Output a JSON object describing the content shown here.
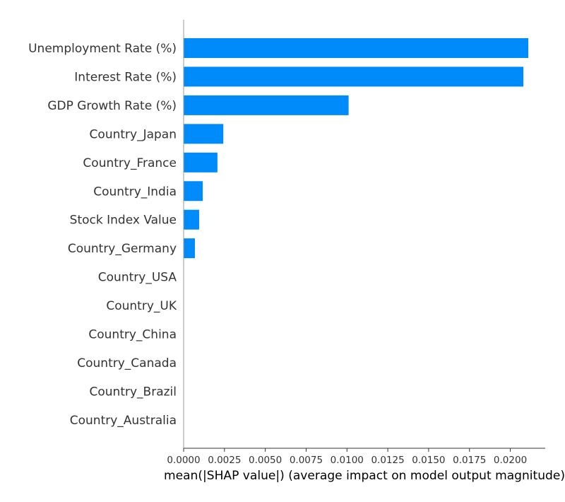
{
  "chart_data": {
    "type": "bar",
    "orientation": "horizontal",
    "categories": [
      "Unemployment Rate (%)",
      "Interest Rate (%)",
      "GDP Growth Rate (%)",
      "Country_Japan",
      "Country_France",
      "Country_India",
      "Stock Index Value",
      "Country_Germany",
      "Country_USA",
      "Country_UK",
      "Country_China",
      "Country_Canada",
      "Country_Brazil",
      "Country_Australia"
    ],
    "values": [
      0.0211,
      0.0208,
      0.0101,
      0.00243,
      0.00207,
      0.00117,
      0.00095,
      0.00069,
      0,
      0,
      0,
      0,
      0,
      0
    ],
    "xlabel": "mean(|SHAP value|) (average impact on model output magnitude)",
    "ylabel": "",
    "xlim": [
      0.0,
      0.0221
    ],
    "xticks": [
      "0.0000",
      "0.0025",
      "0.0050",
      "0.0075",
      "0.0100",
      "0.0125",
      "0.0150",
      "0.0175",
      "0.0200"
    ],
    "bar_color": "#008bfb",
    "grid": false,
    "legend": "none"
  }
}
